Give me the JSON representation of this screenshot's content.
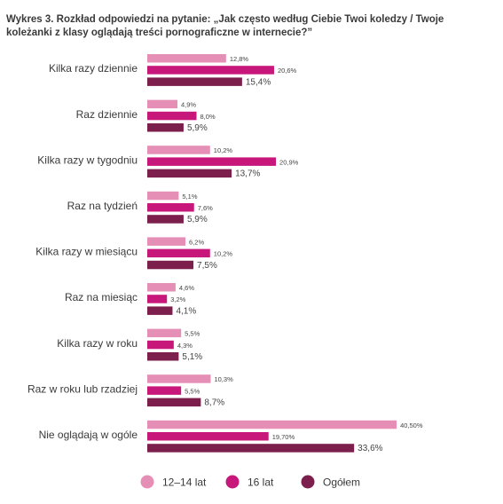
{
  "title": "Wykres 3. Rozkład odpowiedzi na pytanie: „Jak często według Ciebie Twoi koledzy / Twoje\nkoleżanki z klasy oglądają treści pornograficzne w internecie?”",
  "colors": {
    "12-14 lat": "#e68fb6",
    "16 lat": "#c8177a",
    "Ogółem": "#7d1f4d"
  },
  "chart_data": {
    "type": "bar",
    "orientation": "horizontal",
    "title": "Wykres 3. Rozkład odpowiedzi na pytanie: „Jak często według Ciebie Twoi koledzy / Twoje koleżanki z klasy oglądają treści pornograficzne w internecie?”",
    "unit": "%",
    "categories": [
      "Kilka razy dziennie",
      "Raz dziennie",
      "Kilka razy w tygodniu",
      "Raz na tydzień",
      "Kilka razy w miesiącu",
      "Raz na miesiąc",
      "Kilka razy w roku",
      "Raz w roku lub rzadziej",
      "Nie oglądają w ogóle"
    ],
    "series": [
      {
        "name": "12–14 lat",
        "values": [
          12.8,
          4.9,
          10.2,
          5.1,
          6.2,
          4.6,
          5.5,
          10.3,
          40.5
        ],
        "labels": [
          "12,8%",
          "4,9%",
          "10,2%",
          "5,1%",
          "6,2%",
          "4,6%",
          "5,5%",
          "10,3%",
          "40,50%"
        ]
      },
      {
        "name": "16 lat",
        "values": [
          20.6,
          8.0,
          20.9,
          7.6,
          10.2,
          3.2,
          4.3,
          5.5,
          19.7
        ],
        "labels": [
          "20,6%",
          "8,0%",
          "20,9%",
          "7,6%",
          "10,2%",
          "3,2%",
          "4,3%",
          "5,5%",
          "19,70%"
        ]
      },
      {
        "name": "Ogółem",
        "values": [
          15.4,
          5.9,
          13.7,
          5.9,
          7.5,
          4.1,
          5.1,
          8.7,
          33.6
        ],
        "labels": [
          "15,4%",
          "5,9%",
          "13,7%",
          "5,9%",
          "7,5%",
          "4,1%",
          "5,1%",
          "8,7%",
          "33,6%"
        ]
      }
    ],
    "grid": false,
    "legend_position": "bottom"
  }
}
